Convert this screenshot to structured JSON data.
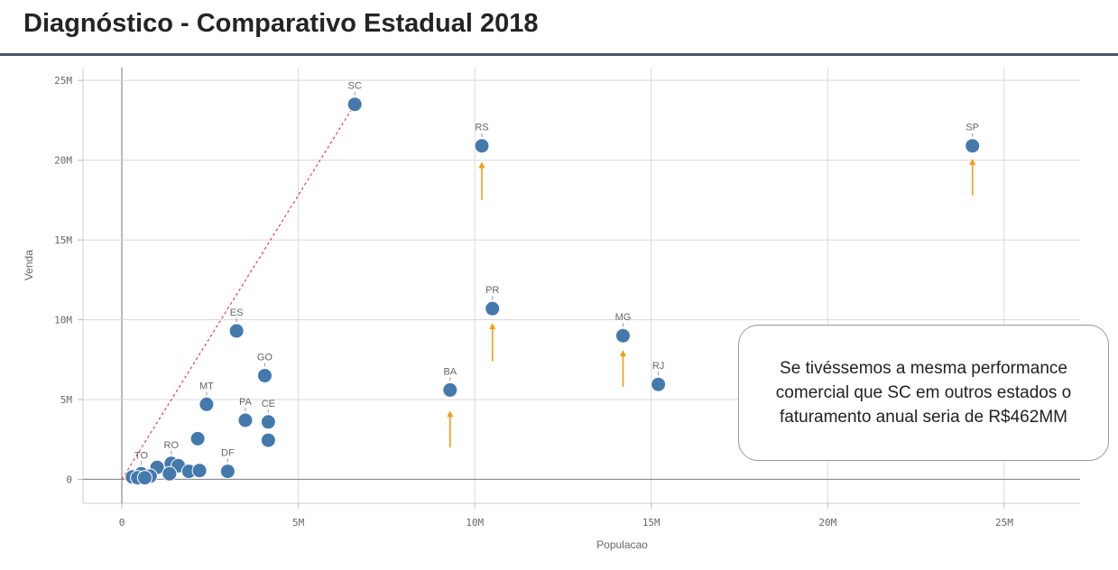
{
  "header": {
    "title": "Diagnóstico - Comparativo Estadual 2018"
  },
  "callout": {
    "text": "Se tivéssemos a mesma performance comercial que SC em outros estados o faturamento anual seria de R$462MM"
  },
  "colors": {
    "point": "#4479ac",
    "arrow": "#f39c12",
    "reference_line": "#e0221c",
    "grid": "#d9d9d9",
    "header_rule": "#4a5568"
  },
  "chart_data": {
    "type": "scatter",
    "xlabel": "Populacao",
    "ylabel": "Venda",
    "xlim": [
      -1100000,
      27150000
    ],
    "ylim": [
      -1500000,
      25800000
    ],
    "xticks": [
      0,
      5000000,
      10000000,
      15000000,
      20000000,
      25000000
    ],
    "xtick_labels": [
      "0",
      "5M",
      "10M",
      "15M",
      "20M",
      "25M"
    ],
    "yticks": [
      0,
      5000000,
      10000000,
      15000000,
      20000000,
      25000000
    ],
    "ytick_labels": [
      "0",
      "5M",
      "10M",
      "15M",
      "20M",
      "25M"
    ],
    "grid": true,
    "points": [
      {
        "label": "SC",
        "x": 6600000,
        "y": 23500000
      },
      {
        "label": "RS",
        "x": 10200000,
        "y": 20900000
      },
      {
        "label": "SP",
        "x": 24100000,
        "y": 20900000
      },
      {
        "label": "PR",
        "x": 10500000,
        "y": 10700000
      },
      {
        "label": "ES",
        "x": 3250000,
        "y": 9300000
      },
      {
        "label": "MG",
        "x": 14200000,
        "y": 9000000
      },
      {
        "label": "GO",
        "x": 4050000,
        "y": 6500000
      },
      {
        "label": "RJ",
        "x": 15200000,
        "y": 5950000
      },
      {
        "label": "BA",
        "x": 9300000,
        "y": 5600000
      },
      {
        "label": "MT",
        "x": 2400000,
        "y": 4700000
      },
      {
        "label": "PA",
        "x": 3500000,
        "y": 3700000
      },
      {
        "label": "CE",
        "x": 4150000,
        "y": 3600000
      },
      {
        "label": "",
        "x": 4150000,
        "y": 2450000
      },
      {
        "label": "",
        "x": 2150000,
        "y": 2550000
      },
      {
        "label": "DF",
        "x": 3000000,
        "y": 500000
      },
      {
        "label": "RO",
        "x": 1400000,
        "y": 1000000
      },
      {
        "label": "",
        "x": 1600000,
        "y": 850000
      },
      {
        "label": "",
        "x": 1000000,
        "y": 750000
      },
      {
        "label": "",
        "x": 1900000,
        "y": 500000
      },
      {
        "label": "",
        "x": 2200000,
        "y": 550000
      },
      {
        "label": "",
        "x": 1350000,
        "y": 350000
      },
      {
        "label": "TO",
        "x": 550000,
        "y": 350000
      },
      {
        "label": "",
        "x": 800000,
        "y": 200000
      },
      {
        "label": "",
        "x": 300000,
        "y": 150000
      },
      {
        "label": "",
        "x": 450000,
        "y": 100000
      },
      {
        "label": "",
        "x": 650000,
        "y": 100000
      }
    ],
    "reference_line": [
      {
        "x": 0,
        "y": 0
      },
      {
        "x": 6600000,
        "y": 23500000
      }
    ],
    "arrows": [
      {
        "x": 10200000,
        "y_from": 17500000,
        "y_to": 19900000
      },
      {
        "x": 24100000,
        "y_from": 17800000,
        "y_to": 20100000
      },
      {
        "x": 10500000,
        "y_from": 7400000,
        "y_to": 9800000
      },
      {
        "x": 14200000,
        "y_from": 5800000,
        "y_to": 8100000
      },
      {
        "x": 9300000,
        "y_from": 2000000,
        "y_to": 4300000
      }
    ]
  }
}
